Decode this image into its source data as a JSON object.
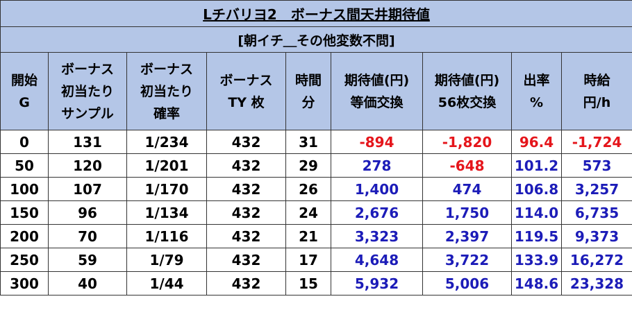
{
  "title": "Lチバリヨ2　ボーナス間天井期待値",
  "subtitle": "[朝イチ＿その他変数不問]",
  "headers": [
    [
      "開始",
      "G"
    ],
    [
      "ボーナス",
      "初当たり",
      "サンプル"
    ],
    [
      "ボーナス",
      "初当たり",
      "確率"
    ],
    [
      "ボーナス",
      "TY 枚"
    ],
    [
      "時間",
      "分"
    ],
    [
      "期待値(円)",
      "等価交換"
    ],
    [
      "期待値(円)",
      "56枚交換"
    ],
    [
      "出率",
      "%"
    ],
    [
      "時給",
      "円/h"
    ]
  ],
  "rows": [
    [
      "0",
      "131",
      "1/234",
      "432",
      "31",
      "-894",
      "-1,820",
      "96.4",
      "-1,724"
    ],
    [
      "50",
      "120",
      "1/201",
      "432",
      "29",
      "278",
      "-648",
      "101.2",
      "573"
    ],
    [
      "100",
      "107",
      "1/170",
      "432",
      "26",
      "1,400",
      "474",
      "106.8",
      "3,257"
    ],
    [
      "150",
      "96",
      "1/134",
      "432",
      "24",
      "2,676",
      "1,750",
      "114.0",
      "6,735"
    ],
    [
      "200",
      "70",
      "1/116",
      "432",
      "21",
      "3,323",
      "2,397",
      "119.5",
      "9,373"
    ],
    [
      "250",
      "59",
      "1/79",
      "432",
      "17",
      "4,648",
      "3,722",
      "133.9",
      "16,272"
    ],
    [
      "300",
      "40",
      "1/44",
      "432",
      "15",
      "5,932",
      "5,006",
      "148.6",
      "23,328"
    ]
  ],
  "colors": {
    "header_bg": "#b4c6e7",
    "negative": "#e5151b",
    "positive": "#1c1cb8",
    "neutral": "#000000",
    "border": "#333333"
  }
}
